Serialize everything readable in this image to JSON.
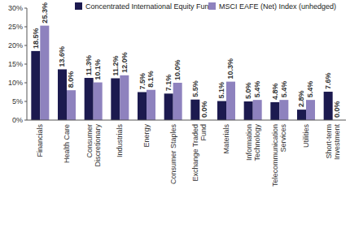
{
  "chart_data": {
    "type": "bar",
    "categories": [
      "Financials",
      "Health Care",
      "Consumer Discretionary",
      "Industrials",
      "Energy",
      "Consumer Staples",
      "Exchange Traded Fund",
      "Materials",
      "Information Technology",
      "Telecommunication Services",
      "Utilities",
      "Short-term Investment"
    ],
    "series": [
      {
        "name": "Concentrated International Equity Fund",
        "color": "#1c1a4f",
        "values": [
          18.5,
          13.6,
          11.3,
          11.2,
          7.5,
          7.1,
          5.5,
          5.1,
          5.0,
          4.8,
          2.8,
          7.6
        ],
        "value_labels": [
          "18.5%",
          "13.6%",
          "11.3%",
          "11.2%",
          "7.5%",
          "7.1%",
          "5.5%",
          "5.1%",
          "5.0%",
          "4.8%",
          "2.8%",
          "7.6%"
        ]
      },
      {
        "name": "MSCI EAFE (Net) Index (unhedged)",
        "color": "#8e82be",
        "values": [
          25.3,
          8.0,
          10.1,
          12.0,
          8.1,
          10.0,
          0.0,
          10.3,
          5.4,
          5.4,
          5.4,
          0.0
        ],
        "value_labels": [
          "25.3%",
          "8.0%",
          "10.1%",
          "12.0%",
          "8.1%",
          "10.0%",
          "0.0%",
          "10.3%",
          "5.4%",
          "5.4%",
          "5.4%",
          "0.0%"
        ]
      }
    ],
    "ylim": [
      0,
      30
    ],
    "yticks": [
      {
        "value": 0,
        "label": "0%"
      },
      {
        "value": 5,
        "label": "5%"
      },
      {
        "value": 10,
        "label": "10%"
      },
      {
        "value": 15,
        "label": "15%"
      },
      {
        "value": 20,
        "label": "20%"
      },
      {
        "value": 25,
        "label": "25%"
      },
      {
        "value": 30,
        "label": "30%"
      }
    ],
    "grid": false,
    "data_labels": true,
    "legend": "top"
  }
}
